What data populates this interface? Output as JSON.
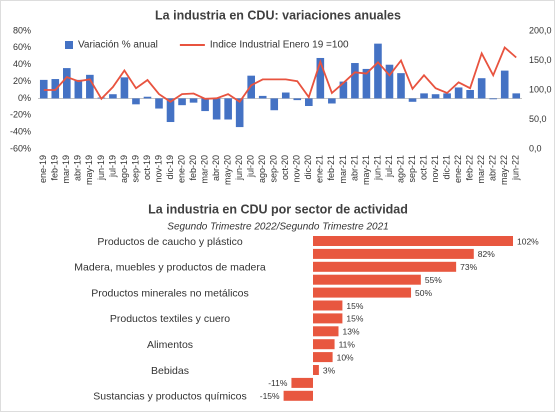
{
  "chart_data": [
    {
      "type": "bar",
      "title": "La industria en CDU: variaciones anuales",
      "categories": [
        "ene-19",
        "feb-19",
        "mar-19",
        "abr-19",
        "may-19",
        "jun-19",
        "jul-19",
        "ago-19",
        "sep-19",
        "oct-19",
        "nov-19",
        "dic-19",
        "ene-20",
        "feb-20",
        "mar-20",
        "abr-20",
        "may-20",
        "jun-20",
        "jul-20",
        "ago-20",
        "sep-20",
        "oct-20",
        "nov-20",
        "dic-20",
        "ene-21",
        "feb-21",
        "mar-21",
        "abr-21",
        "may-21",
        "jun-21",
        "jul-21",
        "ago-21",
        "sep-21",
        "oct-21",
        "nov-21",
        "dic-21",
        "ene-22",
        "feb-22",
        "mar-22",
        "abr-22",
        "may-22",
        "jun-22"
      ],
      "series": [
        {
          "name": "Variación % anual",
          "type": "bar",
          "color": "#4472c4",
          "values": [
            22,
            23,
            36,
            22,
            28,
            1,
            5,
            25,
            -7,
            2,
            -12,
            -28,
            -8,
            -5,
            -15,
            -25,
            -25,
            -34,
            27,
            3,
            -14,
            7,
            -2,
            -9,
            48,
            -6,
            20,
            42,
            35,
            65,
            40,
            30,
            -4,
            6,
            5,
            6,
            13,
            10,
            24,
            -1,
            33,
            6
          ]
        },
        {
          "name": "Indice Industrial Enero 19 =100",
          "type": "line",
          "axis": "y2",
          "color": "#e8533f",
          "values": [
            100,
            100,
            122,
            115,
            118,
            85,
            105,
            133,
            103,
            117,
            93,
            80,
            93,
            94,
            85,
            86,
            93,
            80,
            108,
            118,
            118,
            118,
            115,
            88,
            148,
            95,
            112,
            130,
            128,
            147,
            125,
            150,
            102,
            125,
            103,
            95,
            113,
            103,
            162,
            125,
            172,
            155
          ]
        }
      ],
      "ylim": [
        -60,
        80
      ],
      "yticks": [
        {
          "value": -60,
          "label": "-60%"
        },
        {
          "value": -40,
          "label": "-40%"
        },
        {
          "value": -20,
          "label": "-20%"
        },
        {
          "value": 0,
          "label": "0%"
        },
        {
          "value": 20,
          "label": "20%"
        },
        {
          "value": 40,
          "label": "40%"
        },
        {
          "value": 60,
          "label": "60%"
        },
        {
          "value": 80,
          "label": "80%"
        }
      ],
      "y2lim": [
        0,
        200
      ],
      "y2ticks": [
        {
          "value": 0,
          "label": "0,0"
        },
        {
          "value": 50,
          "label": "50,0"
        },
        {
          "value": 100,
          "label": "100,0"
        },
        {
          "value": 150,
          "label": "150,0"
        },
        {
          "value": 200,
          "label": "200,0"
        }
      ],
      "legend": "top",
      "grid": false
    },
    {
      "type": "barh",
      "title": "La industria en CDU por sector de actividad",
      "subtitle": "Segundo Trimestre 2022/Segundo Trimestre 2021",
      "categories": [
        "Productos de caucho y plástico",
        null,
        "Madera, muebles y productos de madera",
        null,
        "Productos minerales no metálicos",
        null,
        "Productos textiles y cuero",
        null,
        "Alimentos",
        null,
        "Bebidas",
        null,
        "Sustancias y productos químicos"
      ],
      "values": [
        102,
        82,
        73,
        55,
        50,
        15,
        15,
        13,
        11,
        10,
        3,
        -11,
        -15
      ],
      "value_labels": [
        "102%",
        "82%",
        "73%",
        "55%",
        "50%",
        "15%",
        "15%",
        "13%",
        "11%",
        "10%",
        "3%",
        "-11%",
        "-15%"
      ],
      "color": "#e8573f"
    }
  ]
}
